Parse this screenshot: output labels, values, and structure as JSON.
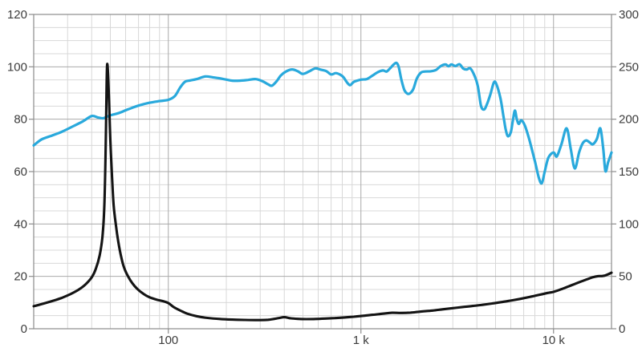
{
  "chart_data": {
    "type": "line",
    "title": "",
    "xlabel": "",
    "ylabel_left": "",
    "ylabel_right": "",
    "grid": "on",
    "legend": "none",
    "axes": {
      "x": {
        "scale": "log",
        "min": 20,
        "max": 20000,
        "major_ticks": [
          100,
          1000,
          10000
        ],
        "major_tick_labels": [
          "100",
          "1 k",
          "10 k"
        ]
      },
      "y_left": {
        "scale": "linear",
        "min": 0,
        "max": 120,
        "major_step": 20,
        "minor_step": 5,
        "major_tick_labels": [
          "0",
          "20",
          "40",
          "60",
          "80",
          "100",
          "120"
        ]
      },
      "y_right": {
        "scale": "linear",
        "min": 0,
        "max": 300,
        "major_step": 50,
        "major_tick_labels": [
          "0",
          "50",
          "100",
          "150",
          "200",
          "250",
          "300"
        ]
      }
    },
    "series": [
      {
        "name": "frequency-response-spl",
        "axis": "left",
        "color": "#29a9dc",
        "width": 3.2,
        "points": [
          [
            20,
            70
          ],
          [
            22,
            72.3
          ],
          [
            25,
            73.8
          ],
          [
            28,
            75.2
          ],
          [
            32,
            77.3
          ],
          [
            36,
            79.2
          ],
          [
            40,
            81.2
          ],
          [
            43,
            80.7
          ],
          [
            46,
            80.4
          ],
          [
            50,
            81.5
          ],
          [
            55,
            82.3
          ],
          [
            62,
            83.8
          ],
          [
            70,
            85.2
          ],
          [
            80,
            86.3
          ],
          [
            90,
            86.9
          ],
          [
            100,
            87.4
          ],
          [
            108,
            88.8
          ],
          [
            115,
            92
          ],
          [
            122,
            94.3
          ],
          [
            130,
            94.8
          ],
          [
            140,
            95.3
          ],
          [
            155,
            96.3
          ],
          [
            170,
            96.0
          ],
          [
            185,
            95.6
          ],
          [
            200,
            95.1
          ],
          [
            215,
            94.7
          ],
          [
            235,
            94.7
          ],
          [
            260,
            95.0
          ],
          [
            285,
            95.3
          ],
          [
            310,
            94.4
          ],
          [
            330,
            93.3
          ],
          [
            345,
            92.8
          ],
          [
            365,
            94.5
          ],
          [
            385,
            96.8
          ],
          [
            410,
            98.3
          ],
          [
            440,
            99.0
          ],
          [
            470,
            98.3
          ],
          [
            500,
            97.3
          ],
          [
            540,
            98.3
          ],
          [
            580,
            99.4
          ],
          [
            620,
            98.9
          ],
          [
            660,
            98.4
          ],
          [
            700,
            97.1
          ],
          [
            740,
            97.6
          ],
          [
            780,
            97.0
          ],
          [
            810,
            96.1
          ],
          [
            850,
            93.9
          ],
          [
            880,
            93.0
          ],
          [
            920,
            94.3
          ],
          [
            1000,
            95.1
          ],
          [
            1070,
            95.3
          ],
          [
            1140,
            96.5
          ],
          [
            1220,
            97.9
          ],
          [
            1300,
            98.6
          ],
          [
            1360,
            98.2
          ],
          [
            1420,
            99.5
          ],
          [
            1480,
            100.9
          ],
          [
            1530,
            101.5
          ],
          [
            1570,
            100.0
          ],
          [
            1620,
            95.3
          ],
          [
            1680,
            91.2
          ],
          [
            1740,
            89.8
          ],
          [
            1800,
            89.9
          ],
          [
            1870,
            91.5
          ],
          [
            1950,
            95.5
          ],
          [
            2050,
            97.8
          ],
          [
            2150,
            98.2
          ],
          [
            2300,
            98.3
          ],
          [
            2450,
            98.8
          ],
          [
            2600,
            100.3
          ],
          [
            2750,
            100.9
          ],
          [
            2850,
            100.2
          ],
          [
            2950,
            100.9
          ],
          [
            3100,
            100.3
          ],
          [
            3250,
            101.0
          ],
          [
            3400,
            99.3
          ],
          [
            3550,
            99.0
          ],
          [
            3700,
            99.4
          ],
          [
            3900,
            96.4
          ],
          [
            4050,
            92.5
          ],
          [
            4200,
            85.2
          ],
          [
            4350,
            83.7
          ],
          [
            4500,
            85.5
          ],
          [
            4700,
            89.5
          ],
          [
            4900,
            94.0
          ],
          [
            5050,
            93.4
          ],
          [
            5300,
            88.0
          ],
          [
            5500,
            81.0
          ],
          [
            5650,
            76.0
          ],
          [
            5800,
            73.5
          ],
          [
            6000,
            75.0
          ],
          [
            6150,
            79.5
          ],
          [
            6300,
            83.3
          ],
          [
            6450,
            80.0
          ],
          [
            6600,
            78.2
          ],
          [
            6800,
            79.6
          ],
          [
            7100,
            77.5
          ],
          [
            7500,
            72.0
          ],
          [
            8000,
            64.0
          ],
          [
            8400,
            57.5
          ],
          [
            8700,
            55.6
          ],
          [
            9000,
            60.0
          ],
          [
            9400,
            65.3
          ],
          [
            10000,
            67.3
          ],
          [
            10400,
            65.8
          ],
          [
            11000,
            70.5
          ],
          [
            11700,
            76.5
          ],
          [
            12300,
            68.5
          ],
          [
            12900,
            61.2
          ],
          [
            13600,
            67.5
          ],
          [
            14200,
            70.9
          ],
          [
            14800,
            71.9
          ],
          [
            15500,
            71.0
          ],
          [
            16000,
            70.4
          ],
          [
            16800,
            72.5
          ],
          [
            17500,
            76.5
          ],
          [
            18100,
            69.0
          ],
          [
            18600,
            60.2
          ],
          [
            19200,
            63.5
          ],
          [
            20000,
            67.3
          ]
        ]
      },
      {
        "name": "impedance",
        "axis": "right",
        "color": "#141414",
        "width": 3.1,
        "points": [
          [
            20,
            21.5
          ],
          [
            22,
            23.5
          ],
          [
            25,
            26.5
          ],
          [
            28,
            29.5
          ],
          [
            31,
            33
          ],
          [
            34,
            37
          ],
          [
            37,
            42
          ],
          [
            40,
            49
          ],
          [
            42,
            57
          ],
          [
            44,
            70
          ],
          [
            45.5,
            88
          ],
          [
            46.5,
            115
          ],
          [
            47.2,
            165
          ],
          [
            47.8,
            230
          ],
          [
            48.1,
            252
          ],
          [
            48.6,
            245
          ],
          [
            49.3,
            215
          ],
          [
            50,
            180
          ],
          [
            51,
            145
          ],
          [
            52,
            118
          ],
          [
            53.5,
            98
          ],
          [
            55,
            83
          ],
          [
            57,
            68
          ],
          [
            59,
            58
          ],
          [
            62,
            49.5
          ],
          [
            65,
            43.5
          ],
          [
            69,
            38
          ],
          [
            74,
            33.5
          ],
          [
            80,
            30
          ],
          [
            87,
            27.8
          ],
          [
            93,
            26.5
          ],
          [
            100,
            24.5
          ],
          [
            107,
            20.5
          ],
          [
            115,
            17.5
          ],
          [
            125,
            14.5
          ],
          [
            140,
            12
          ],
          [
            160,
            10.3
          ],
          [
            185,
            9.3
          ],
          [
            215,
            8.7
          ],
          [
            250,
            8.4
          ],
          [
            290,
            8.3
          ],
          [
            330,
            8.6
          ],
          [
            370,
            10
          ],
          [
            400,
            11
          ],
          [
            430,
            10
          ],
          [
            470,
            9.4
          ],
          [
            520,
            9.2
          ],
          [
            580,
            9.3
          ],
          [
            650,
            9.7
          ],
          [
            730,
            10.2
          ],
          [
            820,
            10.8
          ],
          [
            920,
            11.5
          ],
          [
            1030,
            12.4
          ],
          [
            1150,
            13.3
          ],
          [
            1300,
            14.4
          ],
          [
            1450,
            15.2
          ],
          [
            1600,
            15.1
          ],
          [
            1750,
            15.2
          ],
          [
            1900,
            15.8
          ],
          [
            2100,
            16.6
          ],
          [
            2360,
            17.4
          ],
          [
            2650,
            18.5
          ],
          [
            3000,
            19.7
          ],
          [
            3400,
            20.8
          ],
          [
            3800,
            21.7
          ],
          [
            4300,
            22.9
          ],
          [
            4800,
            24.1
          ],
          [
            5400,
            25.5
          ],
          [
            6000,
            26.9
          ],
          [
            6700,
            28.5
          ],
          [
            7500,
            30.3
          ],
          [
            8400,
            32.3
          ],
          [
            9400,
            34.3
          ],
          [
            10000,
            35.2
          ],
          [
            11000,
            37.8
          ],
          [
            12000,
            40.5
          ],
          [
            13000,
            43
          ],
          [
            14000,
            45.3
          ],
          [
            15000,
            47.3
          ],
          [
            16000,
            49.2
          ],
          [
            17000,
            50.2
          ],
          [
            17800,
            50.3
          ],
          [
            18500,
            50.8
          ],
          [
            19200,
            52
          ],
          [
            20000,
            53.5
          ]
        ]
      }
    ],
    "colors": {
      "background": "#ffffff",
      "grid_minor": "#d8d8d8",
      "grid_major": "#a9a9a9",
      "border": "#8c8c8c",
      "tick_label": "#3c3c3c"
    }
  }
}
